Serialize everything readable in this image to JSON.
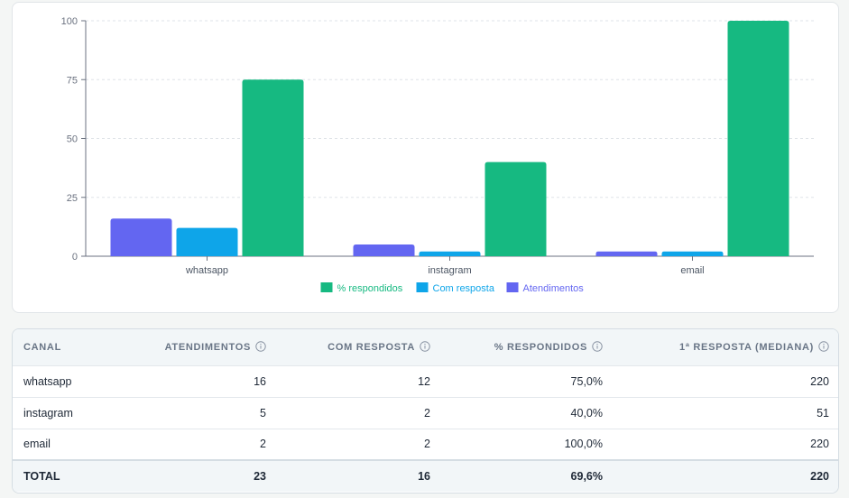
{
  "chart_data": {
    "type": "bar",
    "categories": [
      "whatsapp",
      "instagram",
      "email"
    ],
    "series": [
      {
        "name": "Atendimentos",
        "color": "#6366f1",
        "values": [
          16,
          5,
          2
        ]
      },
      {
        "name": "Com resposta",
        "color": "#0ea5e9",
        "values": [
          12,
          2,
          2
        ]
      },
      {
        "name": "% respondidos",
        "color": "#16b981",
        "values": [
          75,
          40,
          100
        ]
      }
    ],
    "legend_order": [
      "% respondidos",
      "Com resposta",
      "Atendimentos"
    ],
    "yticks": [
      0,
      25,
      50,
      75,
      100
    ],
    "ylim": [
      0,
      100
    ],
    "grid": true,
    "legend_position": "bottom"
  },
  "table": {
    "headers": [
      "CANAL",
      "ATENDIMENTOS",
      "COM RESPOSTA",
      "% RESPONDIDOS",
      "1ª RESPOSTA (MEDIANA)"
    ],
    "rows": [
      [
        "whatsapp",
        "16",
        "12",
        "75,0%",
        "220"
      ],
      [
        "instagram",
        "5",
        "2",
        "40,0%",
        "51"
      ],
      [
        "email",
        "2",
        "2",
        "100,0%",
        "220"
      ]
    ],
    "total": [
      "TOTAL",
      "23",
      "16",
      "69,6%",
      "220"
    ]
  }
}
